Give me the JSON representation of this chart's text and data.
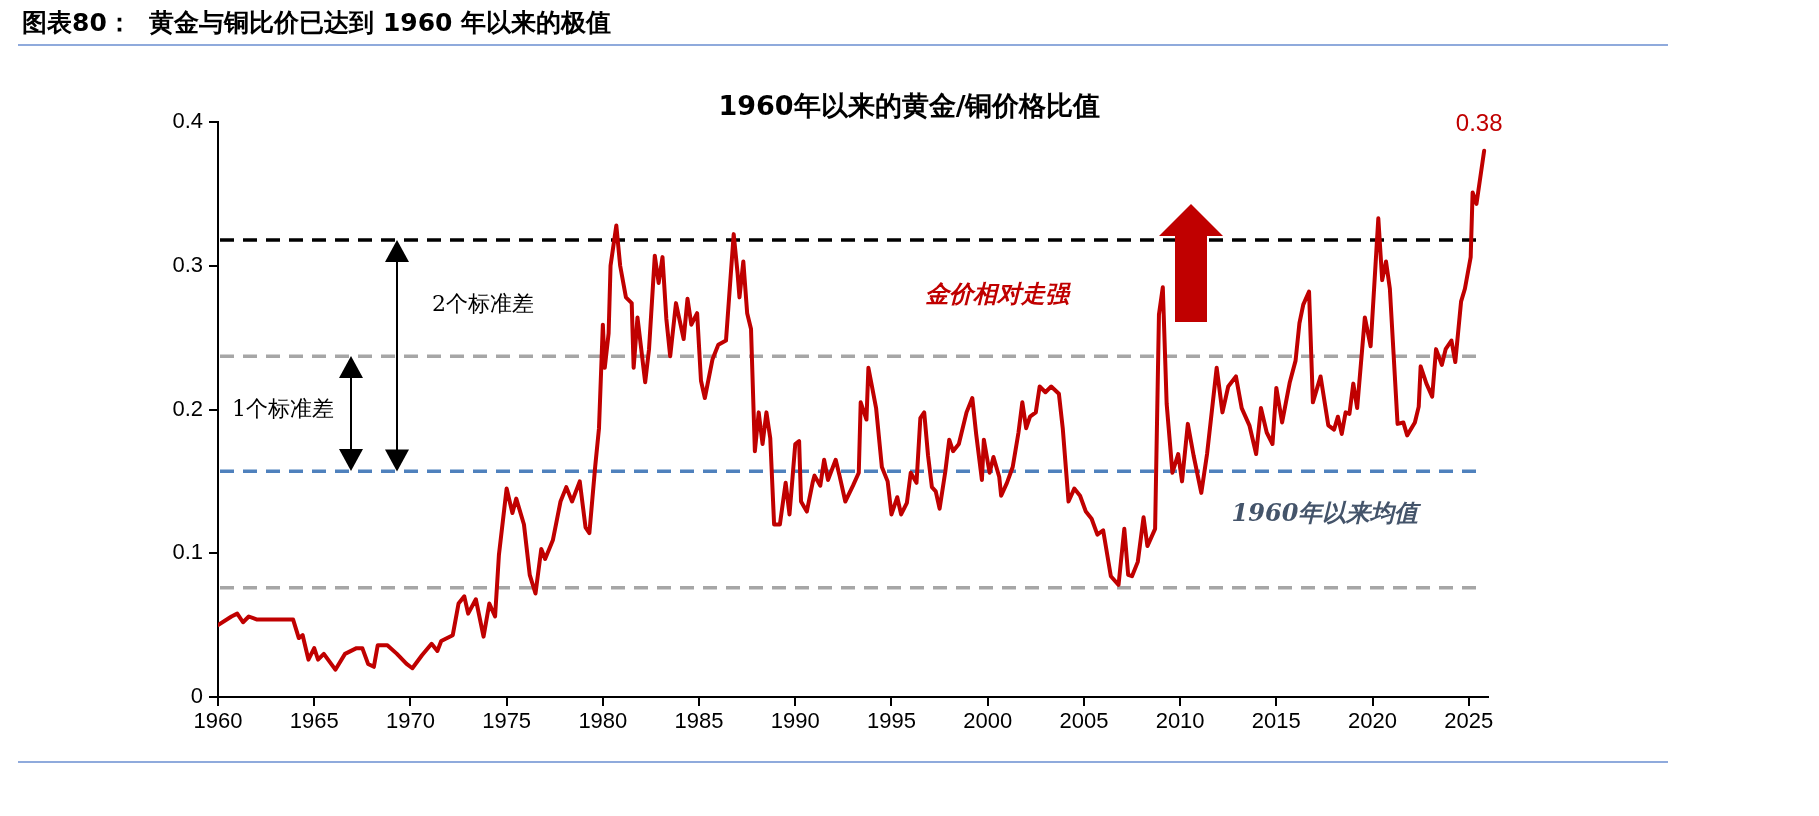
{
  "chart_data": {
    "type": "line",
    "title": "图表80：  黄金与铜比价已达到 1960 年以来的极值",
    "subtitle": "1960年以来的黄金/铜价格比值",
    "x": [
      1960.0,
      1960.7,
      1961.0,
      1961.3,
      1961.6,
      1962.0,
      1963.9,
      1964.2,
      1964.4,
      1964.7,
      1965.0,
      1965.2,
      1965.5,
      1966.1,
      1966.6,
      1967.2,
      1967.5,
      1967.8,
      1968.1,
      1968.3,
      1968.8,
      1969.3,
      1969.8,
      1970.1,
      1970.6,
      1971.1,
      1971.4,
      1971.6,
      1972.2,
      1972.5,
      1972.8,
      1973.0,
      1973.4,
      1973.8,
      1974.1,
      1974.4,
      1974.6,
      1975.0,
      1975.3,
      1975.5,
      1975.9,
      1976.2,
      1976.5,
      1976.8,
      1977.0,
      1977.4,
      1977.8,
      1978.1,
      1978.4,
      1978.8,
      1979.1,
      1979.3,
      1979.6,
      1979.8,
      1980.0,
      1980.1,
      1980.3,
      1980.4,
      1980.7,
      1980.9,
      1981.2,
      1981.5,
      1981.6,
      1981.8,
      1982.2,
      1982.4,
      1982.7,
      1982.9,
      1983.1,
      1983.3,
      1983.5,
      1983.8,
      1984.2,
      1984.4,
      1984.6,
      1984.9,
      1985.1,
      1985.3,
      1985.7,
      1986.0,
      1986.4,
      1986.8,
      1987.0,
      1987.1,
      1987.3,
      1987.5,
      1987.7,
      1987.9,
      1988.1,
      1988.3,
      1988.5,
      1988.7,
      1988.9,
      1989.2,
      1989.5,
      1989.7,
      1990.0,
      1990.2,
      1990.3,
      1990.6,
      1990.9,
      1991.0,
      1991.3,
      1991.5,
      1991.7,
      1992.1,
      1992.3,
      1992.6,
      1993.0,
      1993.3,
      1993.4,
      1993.7,
      1993.8,
      1994.0,
      1994.2,
      1994.5,
      1994.8,
      1995.0,
      1995.3,
      1995.5,
      1995.8,
      1996.0,
      1996.3,
      1996.5,
      1996.7,
      1996.9,
      1997.1,
      1997.3,
      1997.5,
      1997.8,
      1998.0,
      1998.2,
      1998.5,
      1998.9,
      1999.2,
      1999.4,
      1999.7,
      1999.8,
      2000.1,
      2000.3,
      2000.6,
      2000.7,
      2001.0,
      2001.3,
      2001.6,
      2001.8,
      2002.0,
      2002.2,
      2002.5,
      2002.7,
      2003.0,
      2003.3,
      2003.7,
      2003.9,
      2004.2,
      2004.5,
      2004.8,
      2005.1,
      2005.4,
      2005.7,
      2006.0,
      2006.4,
      2006.8,
      2007.1,
      2007.3,
      2007.5,
      2007.8,
      2008.1,
      2008.3,
      2008.7,
      2008.9,
      2009.1,
      2009.3,
      2009.6,
      2009.9,
      2010.1,
      2010.4,
      2010.7,
      2011.1,
      2011.4,
      2011.9,
      2012.2,
      2012.5,
      2012.9,
      2013.2,
      2013.6,
      2013.95,
      2014.2,
      2014.5,
      2014.8,
      2015.0,
      2015.3,
      2015.7,
      2016.0,
      2016.2,
      2016.4,
      2016.7,
      2016.9,
      2017.3,
      2017.7,
      2018.0,
      2018.2,
      2018.4,
      2018.6,
      2018.8,
      2019.0,
      2019.2,
      2019.6,
      2019.9,
      2020.3,
      2020.5,
      2020.7,
      2020.9,
      2021.3,
      2021.6,
      2021.8,
      2022.2,
      2022.4,
      2022.5,
      2022.8,
      2023.1,
      2023.3,
      2023.6,
      2023.8,
      2024.1,
      2024.3,
      2024.6,
      2024.8,
      2025.1,
      2025.2,
      2025.4,
      2025.8
    ],
    "series": [
      {
        "color": "#c00000",
        "values": [
          0.05,
          0.056,
          0.058,
          0.052,
          0.056,
          0.054,
          0.054,
          0.041,
          0.043,
          0.026,
          0.034,
          0.026,
          0.03,
          0.019,
          0.03,
          0.034,
          0.034,
          0.023,
          0.021,
          0.036,
          0.036,
          0.03,
          0.023,
          0.02,
          0.029,
          0.037,
          0.032,
          0.039,
          0.043,
          0.065,
          0.07,
          0.058,
          0.068,
          0.042,
          0.065,
          0.056,
          0.099,
          0.145,
          0.128,
          0.138,
          0.12,
          0.085,
          0.072,
          0.103,
          0.096,
          0.109,
          0.136,
          0.146,
          0.136,
          0.15,
          0.118,
          0.114,
          0.16,
          0.187,
          0.259,
          0.229,
          0.253,
          0.3,
          0.328,
          0.3,
          0.278,
          0.274,
          0.229,
          0.264,
          0.219,
          0.242,
          0.307,
          0.288,
          0.306,
          0.263,
          0.237,
          0.274,
          0.249,
          0.277,
          0.259,
          0.267,
          0.22,
          0.208,
          0.235,
          0.245,
          0.248,
          0.322,
          0.295,
          0.278,
          0.303,
          0.267,
          0.256,
          0.171,
          0.198,
          0.176,
          0.198,
          0.18,
          0.12,
          0.12,
          0.149,
          0.127,
          0.176,
          0.178,
          0.136,
          0.129,
          0.149,
          0.154,
          0.147,
          0.165,
          0.151,
          0.165,
          0.154,
          0.136,
          0.147,
          0.156,
          0.205,
          0.193,
          0.229,
          0.215,
          0.201,
          0.16,
          0.15,
          0.127,
          0.139,
          0.127,
          0.135,
          0.156,
          0.149,
          0.194,
          0.198,
          0.168,
          0.146,
          0.143,
          0.131,
          0.157,
          0.179,
          0.171,
          0.176,
          0.198,
          0.208,
          0.183,
          0.151,
          0.179,
          0.156,
          0.167,
          0.153,
          0.14,
          0.149,
          0.16,
          0.184,
          0.205,
          0.187,
          0.195,
          0.198,
          0.216,
          0.212,
          0.216,
          0.211,
          0.187,
          0.136,
          0.145,
          0.14,
          0.129,
          0.124,
          0.113,
          0.116,
          0.084,
          0.078,
          0.117,
          0.085,
          0.084,
          0.094,
          0.125,
          0.105,
          0.117,
          0.266,
          0.285,
          0.204,
          0.156,
          0.169,
          0.15,
          0.19,
          0.168,
          0.142,
          0.169,
          0.229,
          0.198,
          0.216,
          0.223,
          0.201,
          0.189,
          0.169,
          0.201,
          0.184,
          0.176,
          0.215,
          0.191,
          0.219,
          0.234,
          0.26,
          0.273,
          0.282,
          0.205,
          0.223,
          0.189,
          0.186,
          0.195,
          0.183,
          0.198,
          0.197,
          0.218,
          0.201,
          0.264,
          0.244,
          0.333,
          0.29,
          0.303,
          0.284,
          0.19,
          0.191,
          0.182,
          0.191,
          0.202,
          0.23,
          0.218,
          0.209,
          0.242,
          0.231,
          0.242,
          0.248,
          0.233,
          0.275,
          0.284,
          0.306,
          0.351,
          0.343,
          0.38
        ]
      }
    ],
    "xlim": [
      1960,
      2026
    ],
    "xticks": [
      1960,
      1965,
      1970,
      1975,
      1980,
      1985,
      1990,
      1995,
      2000,
      2005,
      2010,
      2015,
      2020,
      2025
    ],
    "ylim": [
      0,
      0.4
    ],
    "yticks": [
      0,
      {
        "value": 0.1,
        "label": "0.1"
      },
      {
        "value": 0.2,
        "label": "0.2"
      },
      {
        "value": 0.3,
        "label": "0.3"
      },
      {
        "value": 0.4,
        "label": "0.4"
      }
    ],
    "grid": false,
    "legend": false,
    "marker": "none",
    "line_style": "solid",
    "ref_lines": [
      {
        "axis": "y",
        "value": 0.157,
        "label": "1960年以来均值",
        "color": "#4f81bd",
        "line_style": "dashed"
      },
      {
        "axis": "y",
        "value": 0.237,
        "color": "#a6a6a6",
        "line_style": "dashed"
      },
      {
        "axis": "y",
        "value": 0.318,
        "color": "#000000",
        "line_style": "dashed"
      },
      {
        "axis": "y",
        "value": 0.076,
        "color": "#a6a6a6",
        "line_style": "dashed"
      }
    ],
    "annotations": [
      "2个标准差",
      "1个标准差",
      "金价相对走强",
      {
        "text": "0.38",
        "x": 2025.8,
        "y": 0.38
      }
    ]
  }
}
